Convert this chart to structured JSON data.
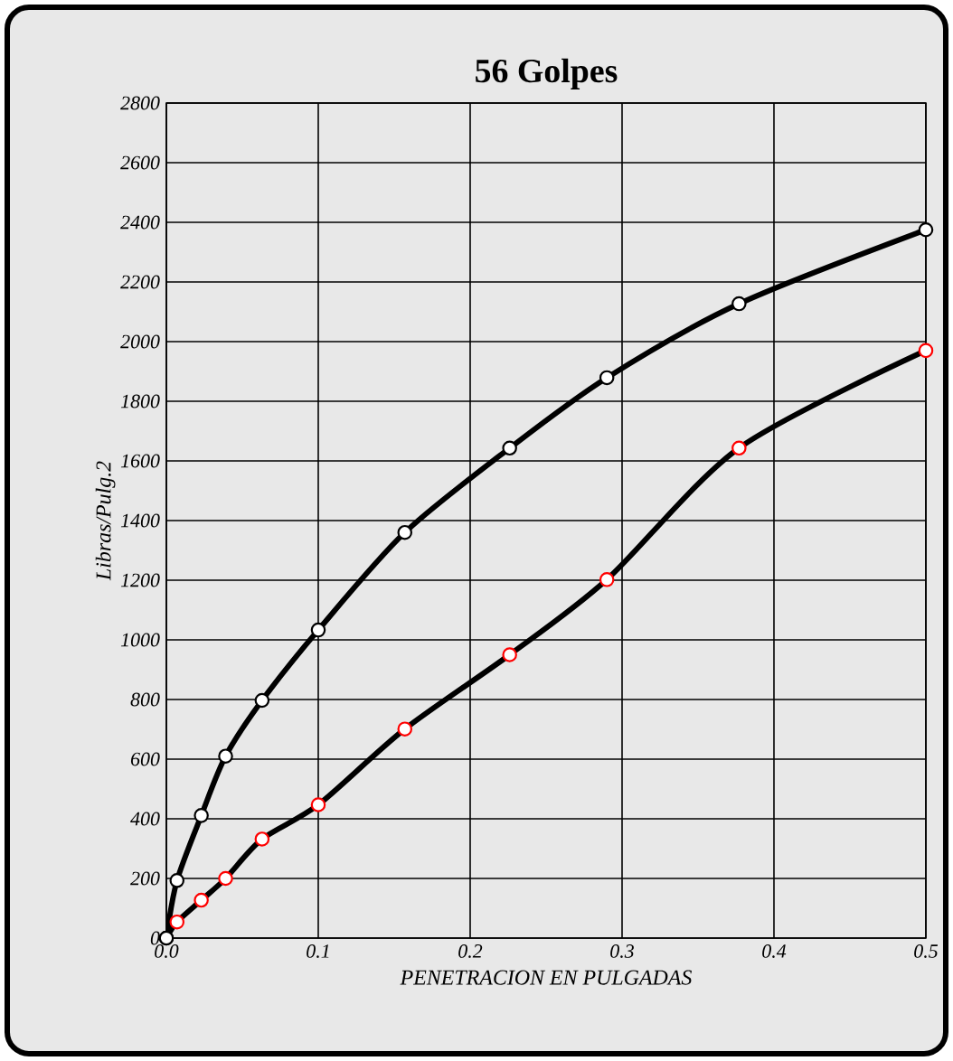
{
  "chart_data": {
    "type": "line",
    "title": "56 Golpes",
    "xlabel": "PENETRACION EN PULGADAS",
    "ylabel": "Libras/Pulg.2",
    "x": [
      0,
      0.007,
      0.023,
      0.039,
      0.063,
      0.1,
      0.157,
      0.226,
      0.29,
      0.377,
      0.5
    ],
    "series": [
      {
        "color": "#000000",
        "colors": [
          "#000000",
          "#000000",
          "#000000",
          "#000000",
          "#000000",
          "#000000",
          "#000000",
          "#000000",
          "#000000",
          "#000000",
          "#000000"
        ],
        "values": [
          0,
          193,
          411,
          610,
          797,
          1033,
          1360,
          1643,
          1879,
          2127,
          2375
        ]
      },
      {
        "color": "#000000",
        "colors": [
          "#000000",
          "#ff0000",
          "#ff0000",
          "#ff0000",
          "#ff0000",
          "#ff0000",
          "#ff0000",
          "#ff0000",
          "#ff0000",
          "#ff0000",
          "#ff0000"
        ],
        "values": [
          0,
          54,
          127,
          200,
          332,
          447,
          701,
          950,
          1202,
          1643,
          1970
        ]
      }
    ],
    "xlim": [
      0,
      0.5
    ],
    "ylim": [
      0,
      2800
    ],
    "xticks": [
      {
        "value": 0,
        "label": "0.0"
      },
      0.1,
      0.2,
      0.3,
      0.4,
      0.5
    ],
    "yticks": [
      0,
      200,
      400,
      600,
      800,
      1000,
      1200,
      1400,
      1600,
      1800,
      2000,
      2200,
      2400,
      2600,
      2800
    ],
    "grid": true,
    "marker": "circle",
    "line_style": "solid"
  }
}
